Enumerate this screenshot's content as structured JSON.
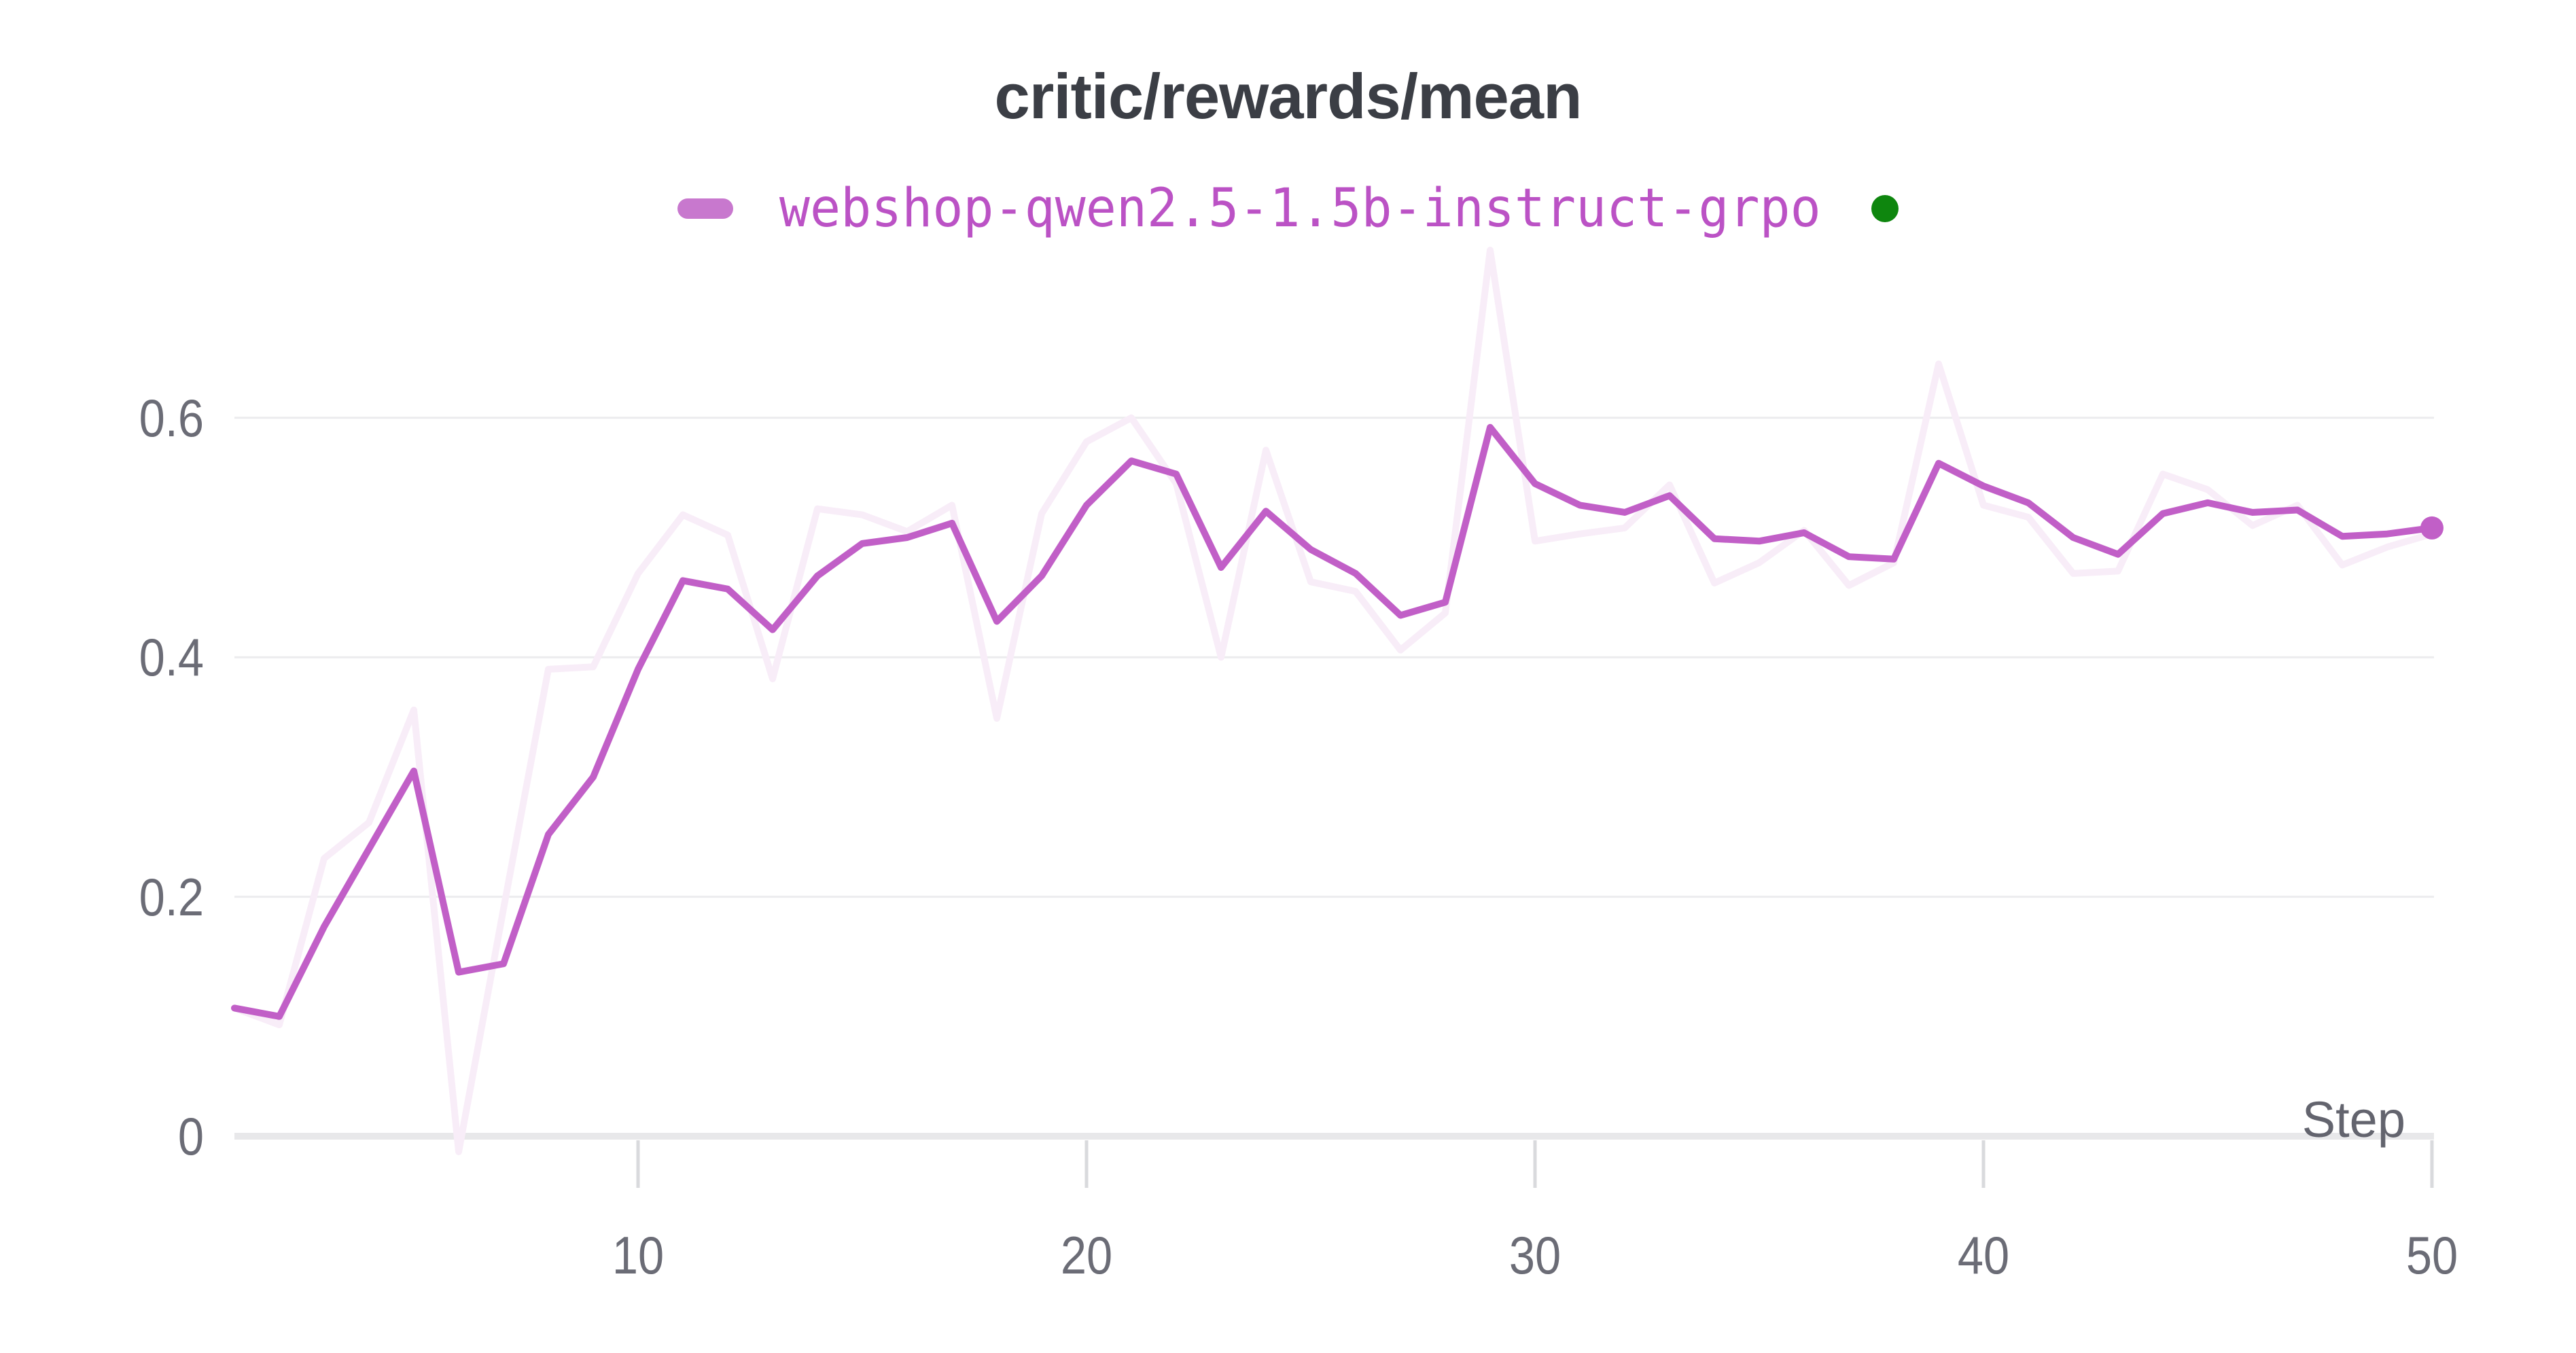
{
  "chart_data": {
    "type": "line",
    "title": "critic/rewards/mean",
    "xlabel": "Step",
    "grid": true,
    "legend_position": "top",
    "x_tick_labels": [
      "10",
      "20",
      "30",
      "40",
      "50"
    ],
    "x_tick_values": [
      10,
      20,
      30,
      40,
      50
    ],
    "y_tick_labels": [
      "0",
      "0.2",
      "0.4",
      "0.6"
    ],
    "y_tick_values": [
      0,
      0.2,
      0.4,
      0.6
    ],
    "xlim": [
      1,
      50
    ],
    "x": [
      1,
      2,
      3,
      4,
      5,
      6,
      7,
      8,
      9,
      10,
      11,
      12,
      13,
      14,
      15,
      16,
      17,
      18,
      19,
      20,
      21,
      22,
      23,
      24,
      25,
      26,
      27,
      28,
      29,
      30,
      31,
      32,
      33,
      34,
      35,
      36,
      37,
      38,
      39,
      40,
      41,
      42,
      43,
      44,
      45,
      46,
      47,
      48,
      49,
      50
    ],
    "series": [
      {
        "name": "webshop-qwen2.5-1.5b-instruct-grpo (raw)",
        "role": "original-unsmoothed",
        "values": [
          0.107,
          0.093,
          0.232,
          0.262,
          0.356,
          -0.013,
          0.19,
          0.39,
          0.392,
          0.47,
          0.519,
          0.502,
          0.382,
          0.524,
          0.519,
          0.505,
          0.527,
          0.349,
          0.52,
          0.58,
          0.6,
          0.545,
          0.4,
          0.573,
          0.463,
          0.455,
          0.406,
          0.437,
          0.74,
          0.497,
          0.503,
          0.508,
          0.544,
          0.462,
          0.479,
          0.506,
          0.46,
          0.479,
          0.645,
          0.527,
          0.517,
          0.47,
          0.472,
          0.553,
          0.54,
          0.51,
          0.527,
          0.477,
          0.492,
          0.503
        ]
      },
      {
        "name": "webshop-qwen2.5-1.5b-instruct-grpo (smoothed)",
        "role": "smoothed",
        "values": [
          0.107,
          0.1,
          0.175,
          0.24,
          0.305,
          0.137,
          0.144,
          0.252,
          0.3,
          0.39,
          0.464,
          0.457,
          0.423,
          0.468,
          0.495,
          0.5,
          0.512,
          0.43,
          0.468,
          0.527,
          0.564,
          0.553,
          0.475,
          0.522,
          0.49,
          0.47,
          0.435,
          0.446,
          0.592,
          0.545,
          0.527,
          0.521,
          0.535,
          0.499,
          0.497,
          0.504,
          0.484,
          0.482,
          0.562,
          0.543,
          0.529,
          0.5,
          0.486,
          0.52,
          0.529,
          0.521,
          0.523,
          0.501,
          0.503,
          0.508
        ]
      }
    ],
    "end_marker": {
      "step": 50,
      "value": 0.508
    },
    "legend": {
      "label": "webshop-qwen2.5-1.5b-instruct-grpo",
      "status_dot_color": "#0e860e"
    },
    "colors": {
      "line": "#c15fc7",
      "line_raw": "#f8edf8",
      "legend_swatch": "#c878ce",
      "legend_text": "#bb52c5",
      "grid": "#ececee",
      "axis_line": "#e8e8ea",
      "tick_mark": "#d9dadd",
      "tick_text": "#6b6c76",
      "title_text": "#3b3e45"
    }
  }
}
